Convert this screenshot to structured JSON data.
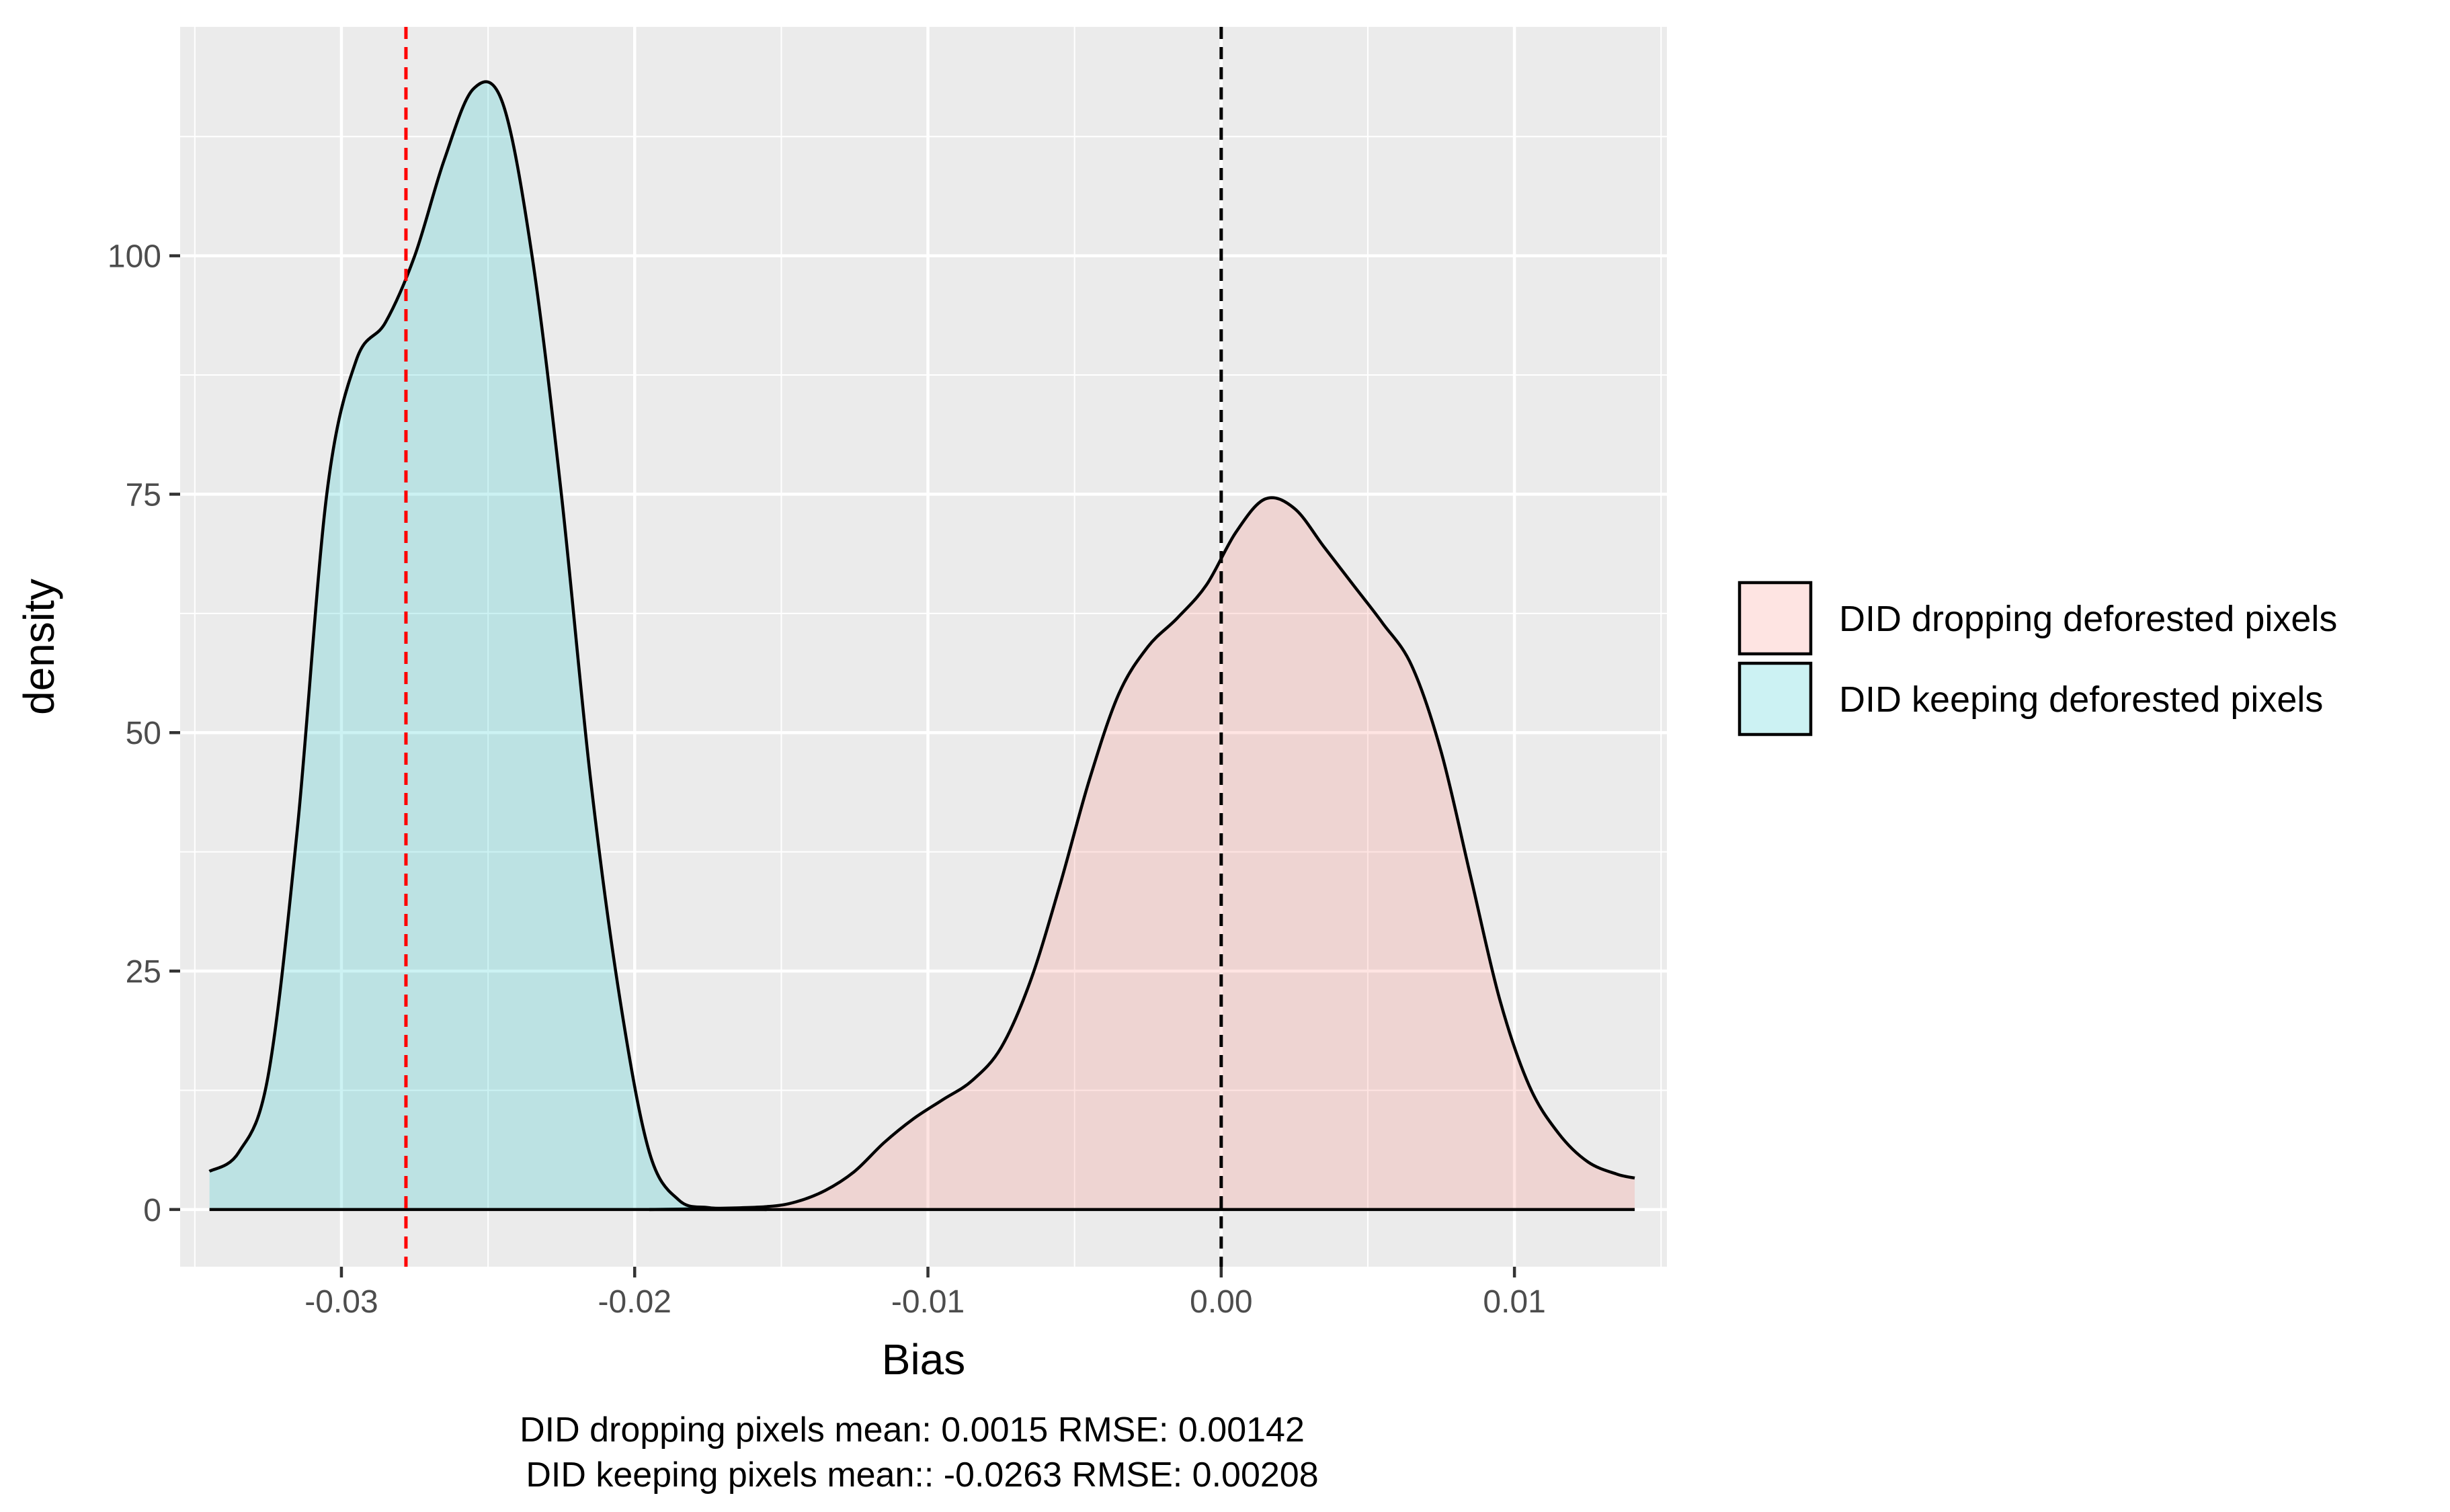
{
  "chart_data": {
    "type": "area",
    "xlabel": "Bias",
    "ylabel": "density",
    "xlim": [
      -0.0355,
      0.0152
    ],
    "ylim": [
      -6,
      124
    ],
    "x_ticks": [
      -0.03,
      -0.02,
      -0.01,
      0.0,
      0.01
    ],
    "x_tick_labels": [
      "-0.03",
      "-0.02",
      "-0.01",
      "0.00",
      "0.01"
    ],
    "y_ticks": [
      0,
      25,
      50,
      75,
      100
    ],
    "y_tick_labels": [
      "0",
      "25",
      "50",
      "75",
      "100"
    ],
    "grid": true,
    "legend_position": "right",
    "series": [
      {
        "name": "DID dropping deforested pixels",
        "fill": "#f8766d",
        "points": [
          [
            -0.0195,
            0.0
          ],
          [
            -0.0175,
            0.1
          ],
          [
            -0.0155,
            0.3
          ],
          [
            -0.0145,
            0.8
          ],
          [
            -0.0135,
            2.0
          ],
          [
            -0.0125,
            4.0
          ],
          [
            -0.0115,
            7.0
          ],
          [
            -0.0105,
            9.5
          ],
          [
            -0.0095,
            11.5
          ],
          [
            -0.0085,
            13.5
          ],
          [
            -0.0075,
            17.0
          ],
          [
            -0.0065,
            24.0
          ],
          [
            -0.0055,
            34.0
          ],
          [
            -0.0045,
            45.0
          ],
          [
            -0.0035,
            54.0
          ],
          [
            -0.0025,
            59.0
          ],
          [
            -0.0015,
            62.0
          ],
          [
            -0.0005,
            65.5
          ],
          [
            0.0005,
            71.0
          ],
          [
            0.0015,
            74.5
          ],
          [
            0.0025,
            73.5
          ],
          [
            0.0035,
            69.5
          ],
          [
            0.0045,
            65.5
          ],
          [
            0.0055,
            61.5
          ],
          [
            0.0065,
            57.0
          ],
          [
            0.0075,
            48.0
          ],
          [
            0.0085,
            35.0
          ],
          [
            0.0095,
            22.0
          ],
          [
            0.0105,
            13.0
          ],
          [
            0.0115,
            8.0
          ],
          [
            0.0125,
            5.0
          ],
          [
            0.0135,
            3.7
          ],
          [
            0.0141,
            3.3
          ]
        ]
      },
      {
        "name": "DID keeping deforested pixels",
        "fill": "#00bfc4",
        "points": [
          [
            -0.0345,
            4.0
          ],
          [
            -0.0335,
            6.0
          ],
          [
            -0.0325,
            14.0
          ],
          [
            -0.0315,
            40.0
          ],
          [
            -0.0305,
            75.0
          ],
          [
            -0.0295,
            89.0
          ],
          [
            -0.0285,
            93.0
          ],
          [
            -0.0275,
            100.0
          ],
          [
            -0.0265,
            110.0
          ],
          [
            -0.0255,
            117.5
          ],
          [
            -0.0245,
            116.0
          ],
          [
            -0.0235,
            100.0
          ],
          [
            -0.0225,
            75.0
          ],
          [
            -0.0215,
            45.0
          ],
          [
            -0.0205,
            22.0
          ],
          [
            -0.0195,
            6.0
          ],
          [
            -0.0185,
            1.0
          ],
          [
            -0.0175,
            0.2
          ],
          [
            -0.0165,
            0.1
          ],
          [
            -0.0155,
            0.0
          ]
        ]
      }
    ],
    "reference_lines": [
      {
        "x": -0.0278,
        "color": "#ff0000",
        "style": "dashed"
      },
      {
        "x": 0.0,
        "color": "#000000",
        "style": "dashed"
      }
    ],
    "caption": [
      "DID dropping pixels mean: 0.0015 RMSE: 0.00142",
      "DID keeping pixels mean:: -0.0263 RMSE: 0.00208"
    ]
  }
}
